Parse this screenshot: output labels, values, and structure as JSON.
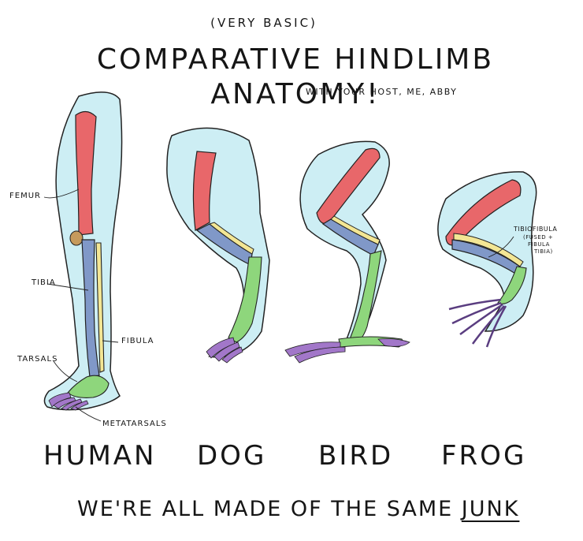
{
  "subtitle": "(VERY BASIC)",
  "title": "COMPARATIVE HINDLIMB ANATOMY!",
  "host": "WITH YOUR HOST, ME, ABBY",
  "labels": {
    "femur": "FEMUR",
    "tibia": "TIBIA",
    "fibula": "FIBULA",
    "tarsals": "TARSALS",
    "metatarsals": "METATARSALS",
    "tibiofibula": "TIBIOFIBULA",
    "tibiofibula_note1": "(FUSED +",
    "tibiofibula_note2": "FIBULA",
    "tibiofibula_note3": "TIBIA)"
  },
  "animals": [
    "HUMAN",
    "DOG",
    "BIRD",
    "FROG"
  ],
  "footer": {
    "text": "WE'RE ALL MADE OF THE SAME",
    "emphasis": "JUNK"
  },
  "colors": {
    "skin": "#cdeef4",
    "femur": "#e8676a",
    "tibia": "#8098c8",
    "fibula": "#f3e694",
    "tarsals": "#8ed67c",
    "metatarsals": "#a277c9",
    "patella": "#c69a5c"
  }
}
